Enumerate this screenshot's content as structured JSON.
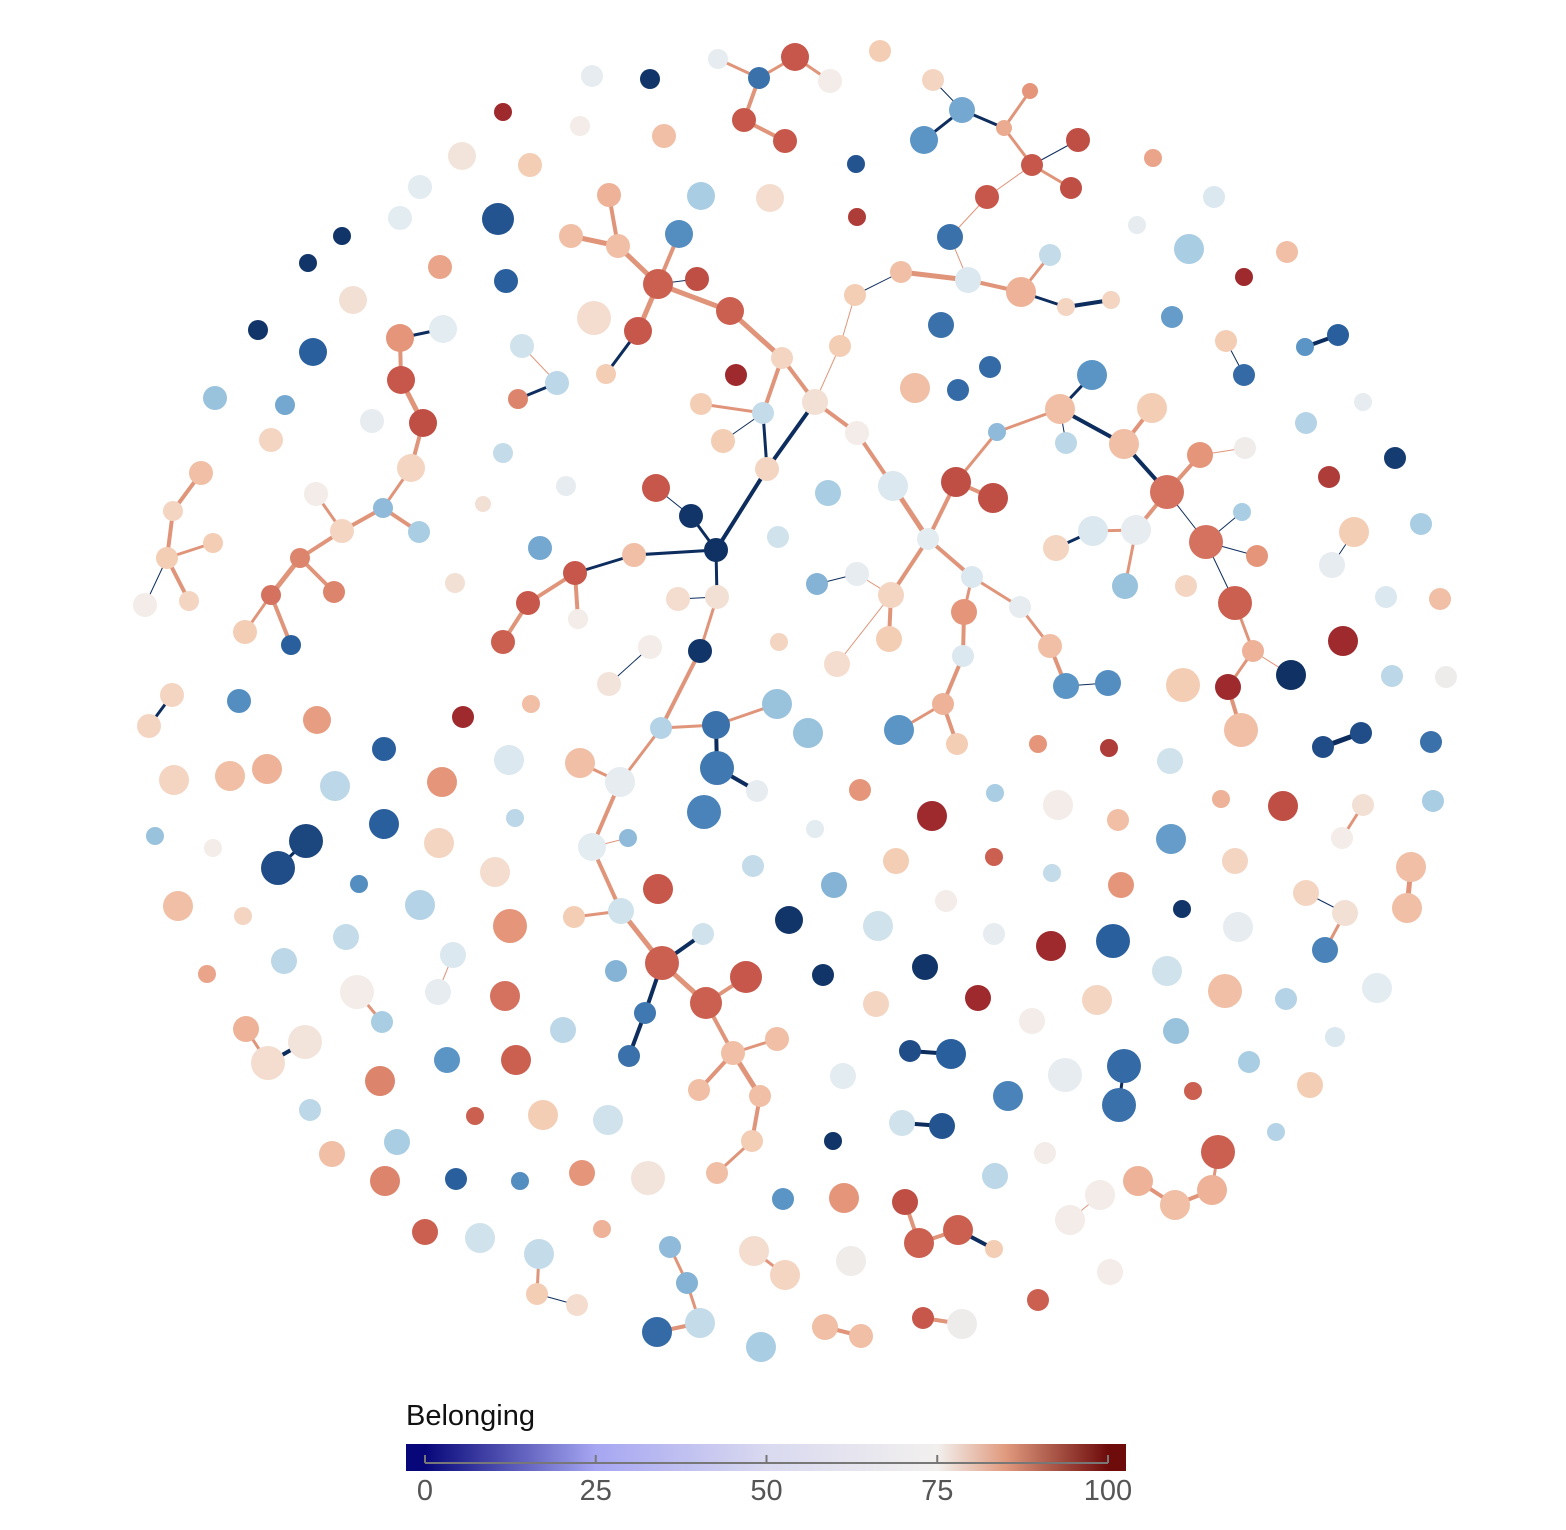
{
  "chart_data": {
    "type": "network",
    "values": [
      95,
      20,
      62,
      3,
      62,
      72,
      80,
      95,
      95,
      78,
      35,
      30,
      85,
      88,
      95,
      96,
      96,
      95,
      12,
      98,
      100,
      72,
      82,
      80,
      74,
      60,
      60,
      12,
      84,
      45,
      76,
      82,
      82,
      28,
      96,
      94,
      94,
      95,
      76,
      80,
      50,
      55,
      90,
      15,
      86,
      3,
      3,
      75,
      3,
      15,
      88,
      60,
      95,
      96,
      62,
      78,
      40,
      45,
      78,
      72,
      90,
      90,
      92,
      15,
      80,
      42,
      35,
      78,
      82,
      78,
      80,
      80,
      78,
      72,
      78,
      78,
      28,
      87,
      15,
      100,
      82,
      75,
      75,
      52,
      62,
      35,
      95,
      95,
      94,
      72,
      82,
      95,
      3,
      2,
      75,
      76,
      72,
      3,
      74,
      100,
      52,
      80,
      80,
      78,
      78,
      75,
      72,
      80,
      80,
      82,
      58,
      20,
      84,
      78,
      78,
      52,
      45,
      62,
      58,
      86,
      82,
      100,
      32,
      80,
      18,
      30,
      15,
      62,
      48,
      5,
      98,
      45,
      80,
      62,
      58,
      82,
      100,
      2,
      50,
      68,
      20,
      18,
      18,
      82,
      40,
      82,
      50,
      30,
      80,
      82,
      92,
      88,
      70,
      45,
      92,
      88,
      78,
      94,
      84,
      100,
      80,
      82,
      62,
      58,
      78,
      42,
      96,
      96,
      58,
      60,
      58,
      62,
      82,
      30,
      28,
      88,
      58,
      84,
      80,
      30,
      78,
      80,
      76,
      62,
      38,
      45,
      55,
      78,
      42,
      42,
      20,
      48,
      22,
      62,
      25,
      62,
      82,
      60,
      40,
      55,
      80,
      95,
      55,
      94,
      38,
      22,
      20,
      94,
      95,
      82,
      82,
      82,
      82,
      80,
      82,
      3,
      3,
      38,
      88,
      60,
      52,
      55,
      80,
      100,
      45,
      88,
      98,
      72,
      82,
      55,
      32,
      78,
      84,
      96,
      10,
      10,
      75,
      72,
      20,
      45,
      82,
      82,
      78,
      75,
      25,
      3,
      62,
      88,
      52,
      15,
      100,
      94,
      72,
      62,
      3,
      100,
      72,
      78,
      55,
      82,
      48,
      60,
      58,
      45,
      42,
      18,
      20,
      62,
      25,
      15,
      10,
      55,
      12,
      94,
      80,
      48,
      94,
      84,
      82,
      84,
      72,
      72,
      72,
      50,
      72,
      94,
      68,
      95,
      94,
      94,
      96,
      80,
      78,
      60,
      3,
      88,
      70,
      82,
      82,
      30,
      78,
      76,
      45,
      52,
      18,
      38,
      40,
      74,
      55,
      88,
      84,
      80,
      50,
      94,
      92,
      88,
      76,
      50,
      58,
      88,
      78,
      48,
      28,
      15,
      50,
      8,
      10,
      72,
      42,
      78,
      82,
      84,
      82,
      78,
      86,
      50,
      52,
      58,
      62,
      72,
      45,
      74,
      76,
      84,
      50,
      90,
      30,
      94,
      45,
      82,
      90,
      15,
      28,
      55,
      52,
      80,
      76,
      94
    ],
    "node_colorscale": [
      [
        0,
        "#0b2a5a"
      ],
      [
        15,
        "#2a5f9e"
      ],
      [
        30,
        "#5a95c6"
      ],
      [
        45,
        "#a9cde3"
      ],
      [
        60,
        "#e3ecf1"
      ],
      [
        72,
        "#f3ece8"
      ],
      [
        80,
        "#f4cdb5"
      ],
      [
        88,
        "#e5967a"
      ],
      [
        95,
        "#c7574a"
      ],
      [
        100,
        "#9e2a2e"
      ]
    ],
    "colorbar": {
      "title": "Belonging",
      "lim": [
        0,
        100
      ],
      "ticks": [
        0,
        25,
        50,
        75,
        100
      ],
      "colorscale": [
        [
          0,
          "#07077a"
        ],
        [
          25,
          "#a6a6f2"
        ],
        [
          50,
          "#d9d9f0"
        ],
        [
          75,
          "#f2f0ee"
        ],
        [
          85,
          "#e09a7e"
        ],
        [
          100,
          "#6e0b0b"
        ]
      ]
    }
  }
}
